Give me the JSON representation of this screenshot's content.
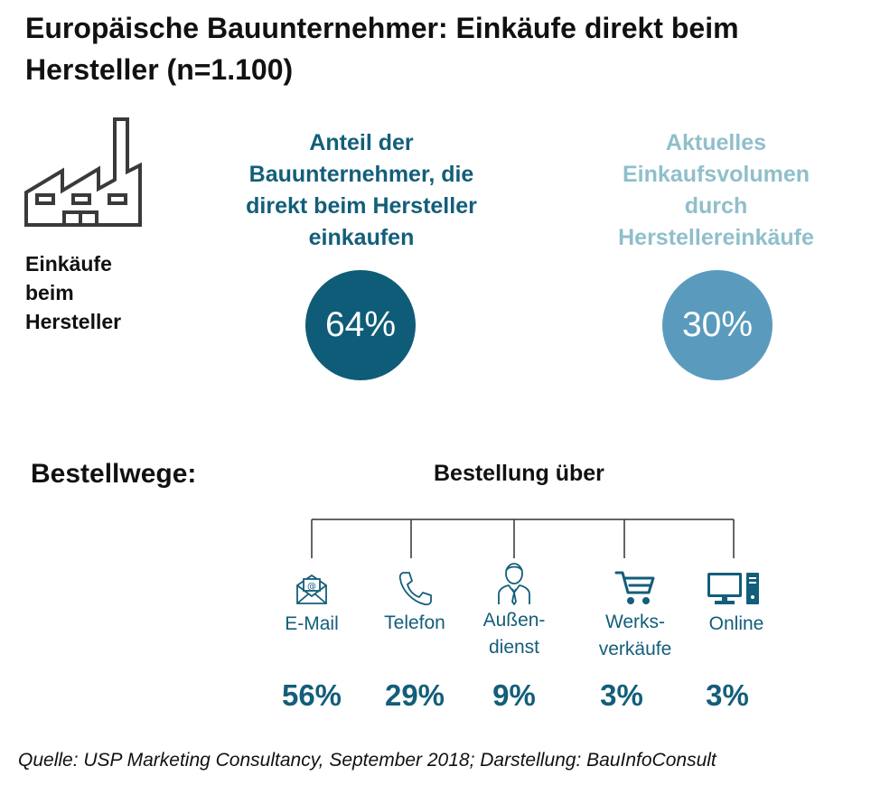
{
  "title": "Europäische Bauunternehmer: Einkäufe direkt beim Hersteller (n=1.100)",
  "factory": {
    "icon": "factory-icon",
    "label_lines": [
      "Einkäufe",
      "beim",
      "Hersteller"
    ]
  },
  "stats": [
    {
      "heading_lines": [
        "Anteil der",
        "Bauunternehmer, die",
        "direkt beim Hersteller",
        "einkaufen"
      ],
      "value": "64%",
      "color": "#0f5c78",
      "heading_color": "#135e7a"
    },
    {
      "heading_lines": [
        "Aktuelles",
        "Einkaufsvolumen",
        "durch",
        "Herstellereinkäufe"
      ],
      "value": "30%",
      "color": "#5a9bbd",
      "heading_color": "#8fbfcb"
    }
  ],
  "section_label": "Bestellwege:",
  "tree_title": "Bestellung über",
  "chart_data": {
    "type": "table",
    "title": "Bestellung über",
    "categories": [
      "E-Mail",
      "Telefon",
      "Außendienst",
      "Werksverkäufe",
      "Online"
    ],
    "series": [
      {
        "values": [
          56,
          29,
          9,
          3,
          3
        ]
      }
    ],
    "display_labels": [
      [
        "E-Mail"
      ],
      [
        "Telefon"
      ],
      [
        "Außen-",
        "dienst"
      ],
      [
        "Werks-",
        "verkäufe"
      ],
      [
        "Online"
      ]
    ],
    "value_labels": [
      "56%",
      "29%",
      "9%",
      "3%",
      "3%"
    ],
    "icons": [
      "email-icon",
      "phone-icon",
      "sales-rep-icon",
      "cart-icon",
      "computer-icon"
    ],
    "unit": "%"
  },
  "colors": {
    "accent": "#135e7a",
    "light": "#8fbfcb",
    "icon": "#135e7a"
  },
  "source": "Quelle: USP Marketing Consultancy, September 2018; Darstellung: BauInfoConsult"
}
